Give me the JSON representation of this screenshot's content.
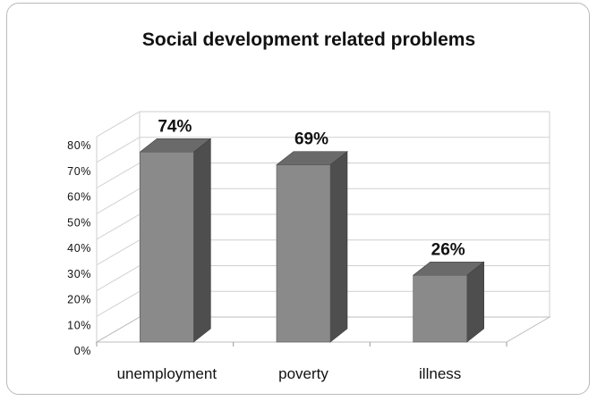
{
  "chart_data": {
    "type": "bar",
    "title": "Social development related problems",
    "categories": [
      "unemployment",
      "poverty",
      "illness"
    ],
    "values": [
      74,
      69,
      26
    ],
    "data_labels": [
      "74%",
      "69%",
      "26%"
    ],
    "y_tick_labels": [
      "0%",
      "10%",
      "20%",
      "30%",
      "40%",
      "50%",
      "60%",
      "70%",
      "80%"
    ],
    "ylim": [
      0,
      80
    ],
    "xlabel": "",
    "ylabel": "",
    "grid": true,
    "style": "3d-column",
    "colors": {
      "bar_front": "#8a8a8a",
      "bar_side": "#4e4e4e",
      "bar_top": "#6a6a6a",
      "gridline": "#cfcfcf",
      "text": "#111111"
    }
  }
}
